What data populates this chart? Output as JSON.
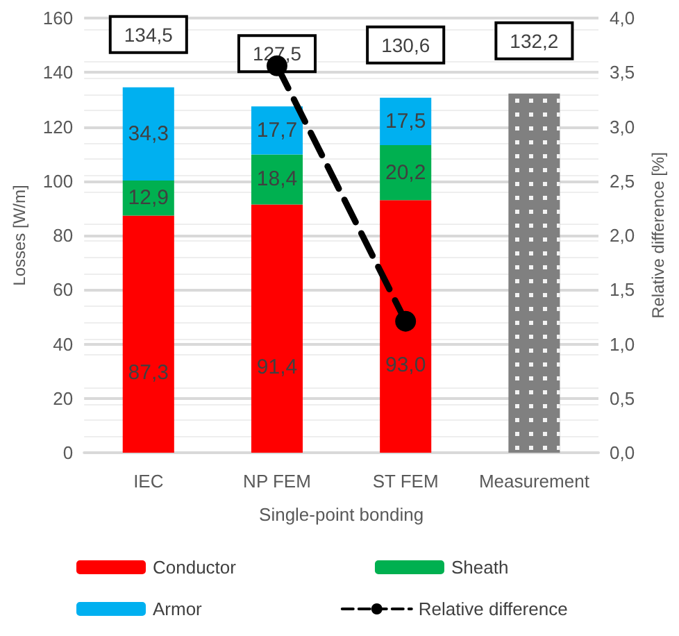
{
  "chart_data": {
    "type": "bar",
    "stacked": true,
    "categories": [
      "IEC",
      "NP FEM",
      "ST FEM",
      "Measurement"
    ],
    "xlabel": "Single-point bonding",
    "ylabel": "Losses [W/m]",
    "y2label": "Relative difference [%]",
    "ylim": [
      0,
      160
    ],
    "yticks": [
      0,
      20,
      40,
      60,
      80,
      100,
      120,
      140,
      160
    ],
    "y2lim": [
      0,
      4
    ],
    "y2ticks": [
      {
        "value": 0,
        "label": "0,0"
      },
      {
        "value": 0.5,
        "label": "0,5"
      },
      {
        "value": 1,
        "label": "1,0"
      },
      {
        "value": 1.5,
        "label": "1,5"
      },
      {
        "value": 2,
        "label": "2,0"
      },
      {
        "value": 2.5,
        "label": "2,5"
      },
      {
        "value": 3,
        "label": "3,0"
      },
      {
        "value": 3.5,
        "label": "3,5"
      },
      {
        "value": 4,
        "label": "4,0"
      }
    ],
    "series": [
      {
        "name": "Conductor",
        "color": "#ff0000",
        "values": [
          87.3,
          91.4,
          93.0,
          null
        ],
        "value_labels": [
          "87,3",
          "91,4",
          "93,0",
          null
        ]
      },
      {
        "name": "Sheath",
        "color": "#00b050",
        "values": [
          12.9,
          18.4,
          20.2,
          null
        ],
        "value_labels": [
          "12,9",
          "18,4",
          "20,2",
          null
        ]
      },
      {
        "name": "Armor",
        "color": "#00b0f0",
        "values": [
          34.3,
          17.7,
          17.5,
          null
        ],
        "value_labels": [
          "34,3",
          "17,7",
          "17,5",
          null
        ]
      },
      {
        "color": "#808080",
        "values": [
          null,
          null,
          null,
          132.2
        ]
      },
      {
        "name": "Relative difference",
        "type": "line",
        "axis": "y2",
        "color": "#000000",
        "values": [
          null,
          3.56,
          1.21,
          null
        ],
        "marker": "circle",
        "line_style": "dashed"
      }
    ],
    "totals": [
      "134,5",
      "127,5",
      "130,6",
      "132,2"
    ],
    "grid": "y",
    "legend": "bottom"
  }
}
